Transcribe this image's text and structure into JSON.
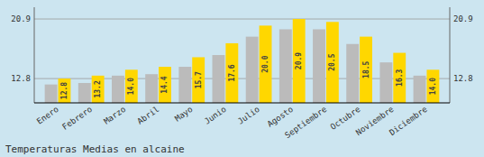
{
  "chart_data": {
    "type": "bar",
    "title": "Temperaturas Medias en alcaine",
    "categories": [
      "Enero",
      "Febrero",
      "Marzo",
      "Abril",
      "Mayo",
      "Junio",
      "Julio",
      "Agosto",
      "Septiembre",
      "Octubre",
      "Noviembre",
      "Diciembre"
    ],
    "series": [
      {
        "color": "#BBBBBB",
        "values": [
          12.0,
          12.2,
          13.2,
          13.4,
          14.4,
          16.0,
          18.5,
          19.5,
          19.5,
          17.5,
          15.0,
          13.2
        ]
      },
      {
        "color": "#FFD700",
        "values": [
          12.8,
          13.2,
          14.0,
          14.4,
          15.7,
          17.6,
          20.0,
          20.9,
          20.5,
          18.5,
          16.3,
          14.0
        ],
        "data_labels": true,
        "value_labels": [
          "12.8",
          "13.2",
          "14.0",
          "14.4",
          "15.7",
          "17.6",
          "20.0",
          "20.9",
          "20.5",
          "18.5",
          "16.3",
          "14.0"
        ]
      }
    ],
    "ylim": [
      9.5,
      22.5
    ],
    "yticks": [
      12.8,
      20.9
    ],
    "grid": true
  }
}
